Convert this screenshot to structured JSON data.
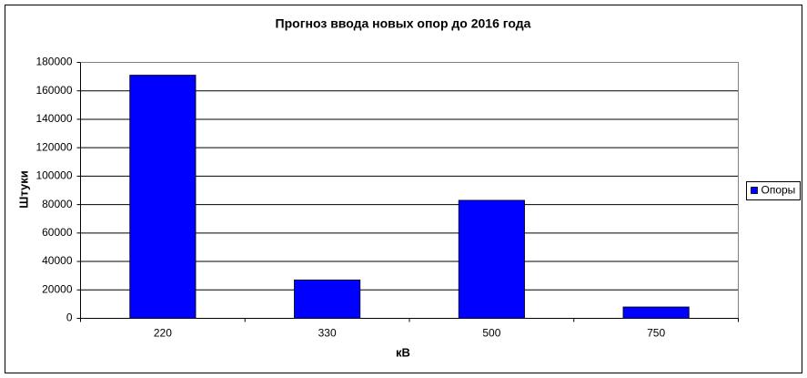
{
  "chart_data": {
    "type": "bar",
    "title": "Прогноз ввода новых опор до 2016 года",
    "x_label": "кВ",
    "y_label": "Штуки",
    "categories": [
      "220",
      "330",
      "500",
      "750"
    ],
    "series": [
      {
        "name": "Опоры",
        "color": "#0000ff",
        "values": [
          171000,
          27000,
          83000,
          8000
        ]
      }
    ],
    "ylim": [
      0,
      180000
    ],
    "yticks": [
      0,
      20000,
      40000,
      60000,
      80000,
      100000,
      120000,
      140000,
      160000,
      180000
    ],
    "grid": true,
    "legend": "right"
  }
}
